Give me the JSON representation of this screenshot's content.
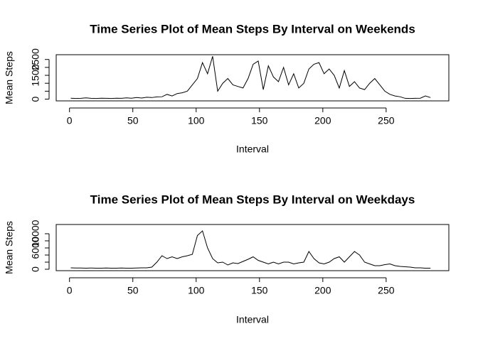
{
  "chart_data": [
    {
      "type": "line",
      "title": "Time Series Plot of Mean Steps By Interval on Weekends",
      "xlabel": "Interval",
      "ylabel": "Mean Steps",
      "color": "#000000",
      "x": [
        1,
        5,
        9,
        13,
        17,
        21,
        25,
        29,
        33,
        37,
        41,
        45,
        49,
        53,
        57,
        61,
        65,
        69,
        73,
        77,
        81,
        85,
        89,
        93,
        97,
        101,
        105,
        109,
        113,
        117,
        121,
        125,
        129,
        133,
        137,
        141,
        145,
        149,
        153,
        157,
        161,
        165,
        169,
        173,
        177,
        181,
        185,
        189,
        193,
        197,
        201,
        205,
        209,
        213,
        217,
        221,
        225,
        229,
        233,
        237,
        241,
        245,
        249,
        253,
        257,
        261,
        265,
        269,
        273,
        277,
        281,
        285
      ],
      "values": [
        60,
        40,
        50,
        80,
        50,
        40,
        60,
        50,
        40,
        60,
        50,
        80,
        60,
        100,
        70,
        120,
        100,
        140,
        150,
        300,
        200,
        350,
        400,
        500,
        900,
        1300,
        2300,
        1600,
        2700,
        500,
        1000,
        1300,
        900,
        800,
        700,
        1300,
        2200,
        2400,
        600,
        2100,
        1400,
        1100,
        2000,
        900,
        1600,
        700,
        1000,
        1900,
        2200,
        2300,
        1600,
        1900,
        1500,
        700,
        1800,
        800,
        1100,
        700,
        600,
        1000,
        1300,
        900,
        500,
        300,
        200,
        150,
        50,
        40,
        50,
        60,
        200,
        100
      ],
      "xlim": [
        -10.5,
        299.5
      ],
      "xticks": [
        0,
        50,
        100,
        150,
        200,
        250
      ],
      "ylim": [
        -110,
        2800
      ],
      "yticks": [
        0,
        1500,
        2500
      ],
      "yminor": [
        500,
        1000,
        2000
      ]
    },
    {
      "type": "line",
      "title": "Time Series Plot of Mean Steps By Interval on Weekdays",
      "xlabel": "Interval",
      "ylabel": "Mean Steps",
      "color": "#000000",
      "x": [
        1,
        5,
        9,
        13,
        17,
        21,
        25,
        29,
        33,
        37,
        41,
        45,
        49,
        53,
        57,
        61,
        65,
        69,
        73,
        77,
        81,
        85,
        89,
        93,
        97,
        101,
        105,
        109,
        113,
        117,
        121,
        125,
        129,
        133,
        137,
        141,
        145,
        149,
        153,
        157,
        161,
        165,
        169,
        173,
        177,
        181,
        185,
        189,
        193,
        197,
        201,
        205,
        209,
        213,
        217,
        221,
        225,
        229,
        233,
        237,
        241,
        245,
        249,
        253,
        257,
        261,
        265,
        269,
        273,
        277,
        281,
        285
      ],
      "values": [
        400,
        350,
        350,
        300,
        350,
        300,
        300,
        350,
        300,
        300,
        350,
        300,
        300,
        350,
        400,
        400,
        600,
        2000,
        3800,
        3000,
        3500,
        3000,
        3500,
        3800,
        4200,
        9500,
        10800,
        6000,
        3000,
        1800,
        2000,
        1200,
        1800,
        1600,
        2200,
        2800,
        3500,
        2500,
        2000,
        1500,
        2000,
        1500,
        2000,
        2000,
        1500,
        1800,
        2000,
        5000,
        3000,
        1800,
        1500,
        2000,
        3000,
        3500,
        2000,
        3500,
        5000,
        4000,
        2000,
        1500,
        1000,
        1000,
        1300,
        1500,
        1000,
        800,
        700,
        600,
        400,
        400,
        300,
        300
      ],
      "xlim": [
        -10.5,
        299.5
      ],
      "xticks": [
        0,
        50,
        100,
        150,
        200,
        250
      ],
      "ylim": [
        -400,
        12600
      ],
      "yticks": [
        0,
        6000,
        10000
      ],
      "yminor": [
        2000,
        4000,
        8000
      ]
    }
  ]
}
